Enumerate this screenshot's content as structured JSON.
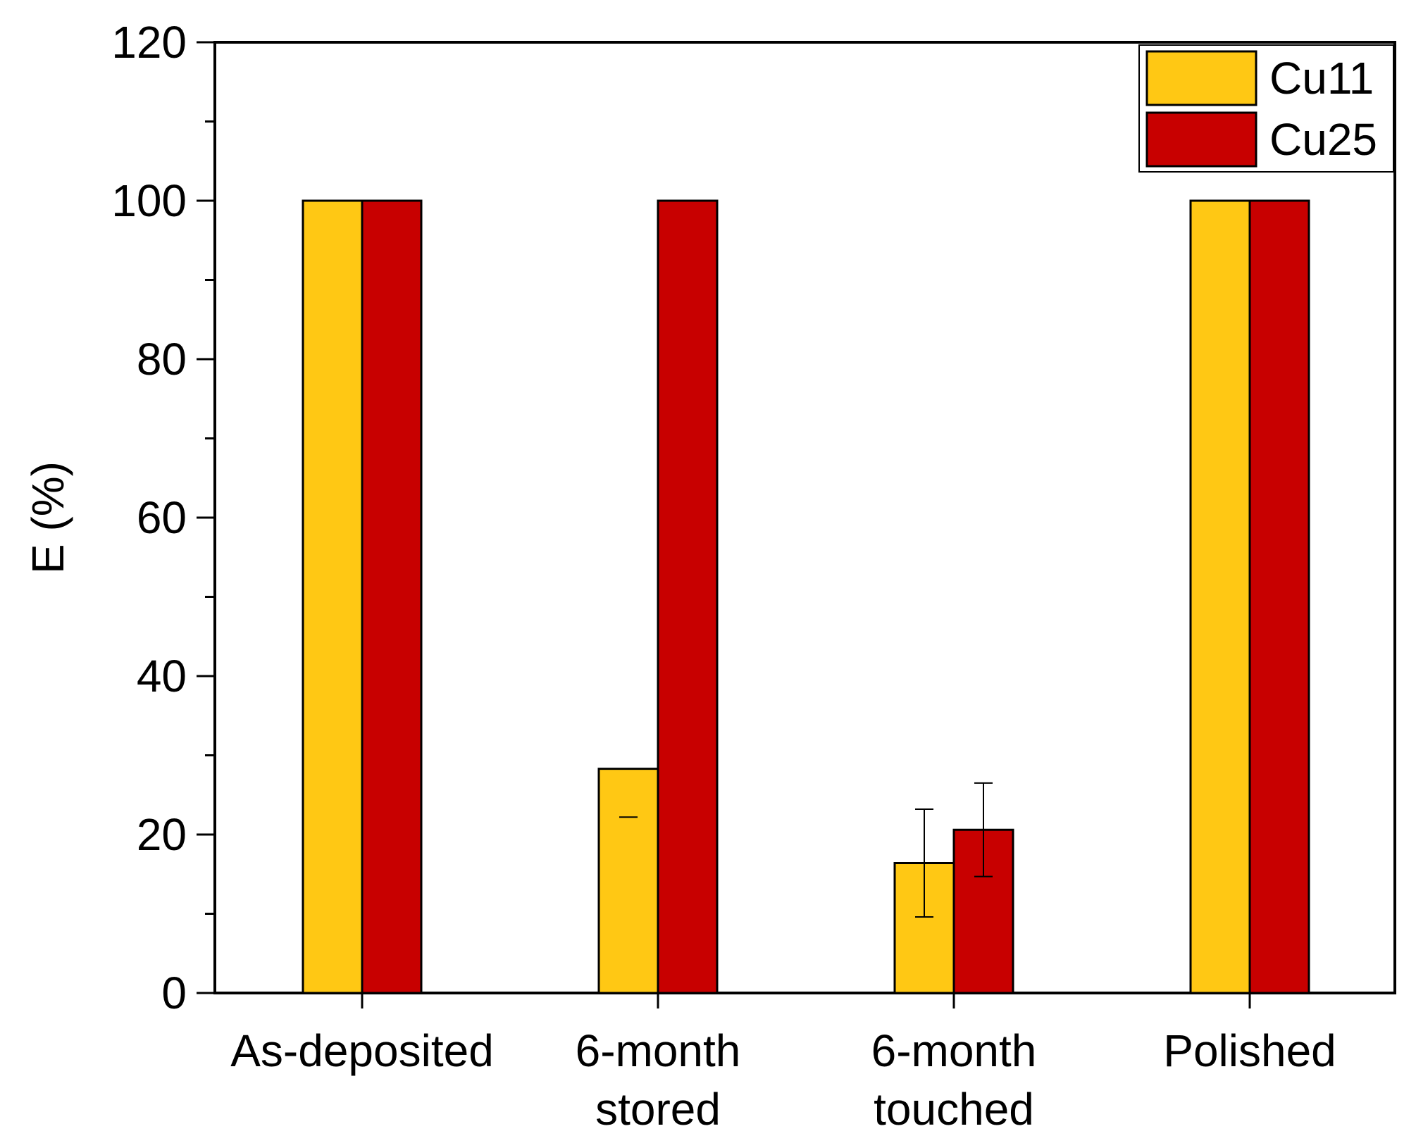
{
  "chart_data": {
    "type": "bar",
    "title": "",
    "xlabel": "",
    "ylabel": "E (%)",
    "ylim": [
      0,
      120
    ],
    "yticks": [
      0,
      20,
      40,
      60,
      80,
      100,
      120
    ],
    "y_minor_step": 10,
    "grid": false,
    "legend_position": "top-right",
    "categories": [
      [
        "As-deposited"
      ],
      [
        "6-month",
        "stored"
      ],
      [
        "6-month",
        "touched"
      ],
      [
        "Polished"
      ]
    ],
    "series": [
      {
        "name": "Cu11",
        "color": "#FFC814",
        "values": [
          100,
          28.3,
          16.4,
          100
        ],
        "error_bars": [
          null,
          {
            "low": 22.2,
            "high": null
          },
          {
            "low": 9.6,
            "high": 23.2
          },
          null
        ]
      },
      {
        "name": "Cu25",
        "color": "#C80000",
        "values": [
          100,
          100,
          20.6,
          100
        ],
        "error_bars": [
          null,
          null,
          {
            "low": 14.7,
            "high": 26.5
          },
          null
        ]
      }
    ]
  }
}
